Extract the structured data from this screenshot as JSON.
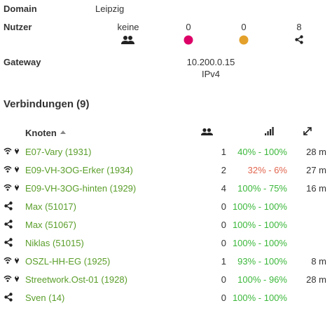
{
  "info": {
    "domain": {
      "label": "Domain",
      "value": "Leipzig"
    },
    "nutzer": {
      "label": "Nutzer",
      "values": [
        "keine",
        0,
        0,
        8
      ]
    },
    "gateway": {
      "label": "Gateway",
      "values": [
        "10.200.0.15",
        "IPv4"
      ]
    }
  },
  "connections": {
    "title": "Verbindungen (9)",
    "header": "Knoten",
    "rows": [
      {
        "kind": "wifi",
        "name": "E07-Vary (1931)",
        "clients": 1,
        "tq": "40% - 100%",
        "tq_color": "#3cb83c",
        "distance": "28 m"
      },
      {
        "kind": "wifi",
        "name": "E09-VH-3OG-Erker (1934)",
        "clients": 2,
        "tq": "32% - 6%",
        "tq_color": "#e2664f",
        "distance": "27 m"
      },
      {
        "kind": "wifi",
        "name": "E09-VH-3OG-hinten (1929)",
        "clients": 4,
        "tq": "100% - 75%",
        "tq_color": "#3cb83c",
        "distance": "16 m"
      },
      {
        "kind": "vpn",
        "name": "Max (51017)",
        "clients": 0,
        "tq": "100% - 100%",
        "tq_color": "#3cb83c"
      },
      {
        "kind": "vpn",
        "name": "Max (51067)",
        "clients": 0,
        "tq": "100% - 100%",
        "tq_color": "#3cb83c"
      },
      {
        "kind": "vpn",
        "name": "Niklas (51015)",
        "clients": 0,
        "tq": "100% - 100%",
        "tq_color": "#3cb83c"
      },
      {
        "kind": "wifi",
        "name": "OSZL-HH-EG (1925)",
        "clients": 1,
        "tq": "93% - 100%",
        "tq_color": "#3cb83c",
        "distance": "8 m"
      },
      {
        "kind": "wifi",
        "name": "Streetwork.Ost-01 (1928)",
        "clients": 0,
        "tq": "100% - 96%",
        "tq_color": "#3cb83c",
        "distance": "28 m"
      },
      {
        "kind": "vpn",
        "name": "Sven (14)",
        "clients": 0,
        "tq": "100% - 100%",
        "tq_color": "#3cb83c"
      }
    ]
  }
}
